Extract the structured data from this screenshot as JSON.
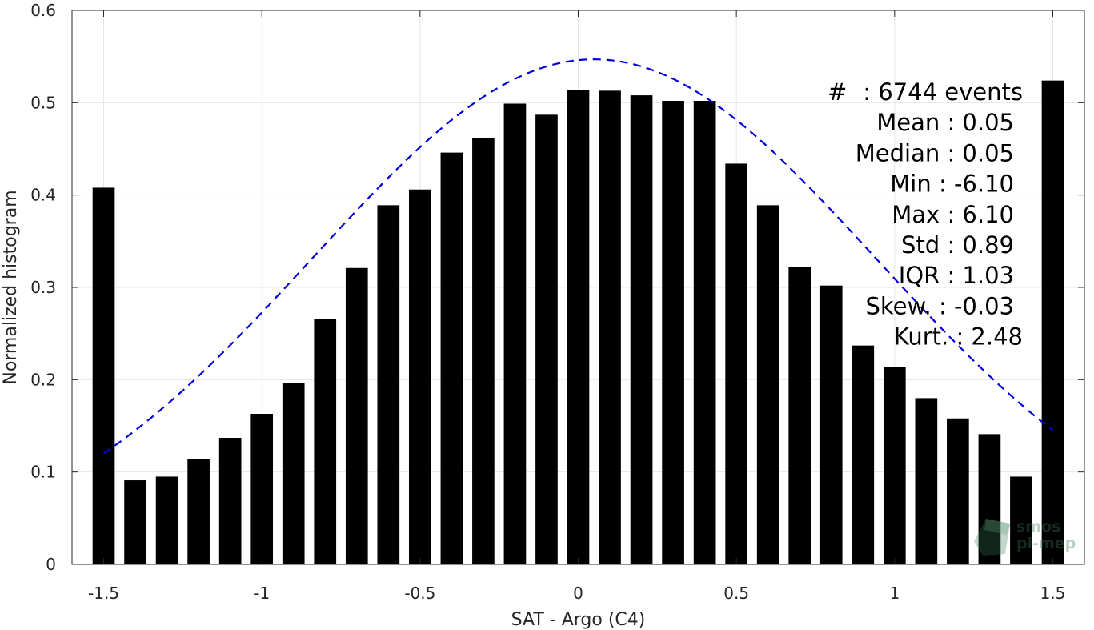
{
  "chart_data": {
    "type": "bar",
    "xlabel": "SAT - Argo (C4)",
    "ylabel": "Normalized histogram",
    "xlim": [
      -1.6,
      1.6
    ],
    "ylim": [
      0,
      0.6
    ],
    "xticks": [
      -1.5,
      -1,
      -0.5,
      0,
      0.5,
      1,
      1.5
    ],
    "xtick_labels": [
      "-1.5",
      "-1",
      "-0.5",
      "0",
      "0.5",
      "1",
      "1.5"
    ],
    "yticks": [
      0,
      0.1,
      0.2,
      0.3,
      0.4,
      0.5,
      0.6
    ],
    "ytick_labels": [
      "0",
      "0.1",
      "0.2",
      "0.3",
      "0.4",
      "0.5",
      "0.6"
    ],
    "grid": true,
    "bar_color": "#000000",
    "bins": [
      -1.5,
      -1.4,
      -1.3,
      -1.2,
      -1.1,
      -1.0,
      -0.9,
      -0.8,
      -0.7,
      -0.6,
      -0.5,
      -0.4,
      -0.3,
      -0.2,
      -0.1,
      0.0,
      0.1,
      0.2,
      0.3,
      0.4,
      0.5,
      0.6,
      0.7,
      0.8,
      0.9,
      1.0,
      1.1,
      1.2,
      1.3,
      1.4,
      1.5
    ],
    "values": [
      0.408,
      0.091,
      0.095,
      0.114,
      0.137,
      0.163,
      0.196,
      0.266,
      0.321,
      0.389,
      0.406,
      0.446,
      0.462,
      0.499,
      0.487,
      0.514,
      0.513,
      0.508,
      0.502,
      0.502,
      0.434,
      0.389,
      0.322,
      0.302,
      0.237,
      0.214,
      0.18,
      0.158,
      0.141,
      0.095,
      0.524
    ],
    "fit_curve": {
      "type": "gaussian",
      "mean": 0.05,
      "std": 0.89,
      "peak": 0.547,
      "x_range": [
        -1.5,
        1.5
      ],
      "color": "#0000dd",
      "style": "dashed"
    },
    "stats": [
      {
        "label": "#",
        "value": ": 6744 events"
      },
      {
        "label": "Mean",
        "value": ": 0.05"
      },
      {
        "label": "Median",
        "value": ": 0.05"
      },
      {
        "label": "Min",
        "value": ": -6.10"
      },
      {
        "label": "Max",
        "value": ": 6.10"
      },
      {
        "label": "Std",
        "value": ": 0.89"
      },
      {
        "label": "IQR",
        "value": ": 1.03"
      },
      {
        "label": "Skew.",
        "value": ": -0.03"
      },
      {
        "label": "Kurt.",
        "value": ": 2.48"
      }
    ]
  },
  "watermark": {
    "line1": "smos",
    "line2": "pi-mep",
    "icon": "smos-pimep-logo-icon"
  }
}
